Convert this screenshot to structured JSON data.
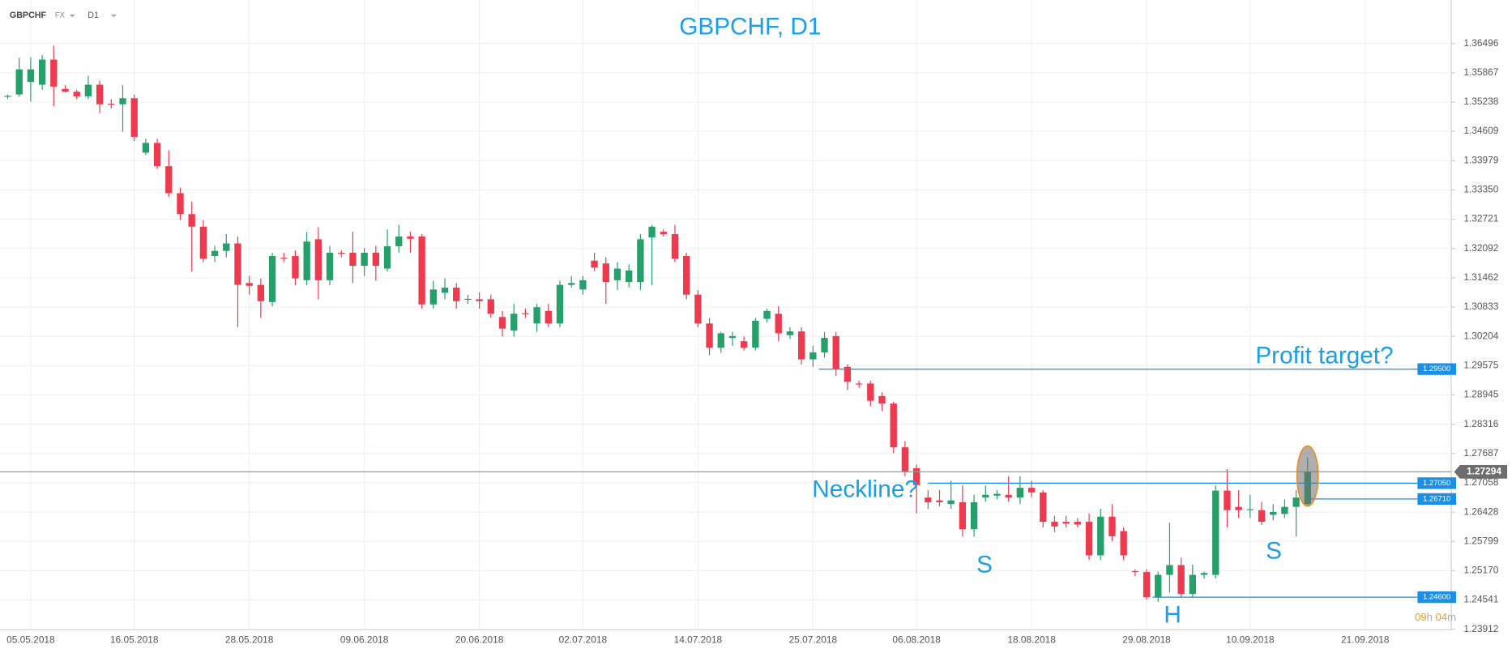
{
  "header": {
    "symbol": "GBPCHF",
    "market": "FX",
    "timeframe": "D1"
  },
  "chart_data": {
    "type": "candlestick",
    "title": "GBPCHF, D1",
    "up_color": "#26a06b",
    "down_color": "#ee3a4f",
    "grid": true,
    "ylim": [
      1.239,
      1.3743
    ],
    "yticks": [
      1.36496,
      1.35867,
      1.35238,
      1.34609,
      1.33979,
      {
        "value": 1.3335,
        "label": "1.33350"
      },
      1.32721,
      1.32092,
      1.31462,
      1.30833,
      1.30204,
      1.29575,
      1.28945,
      1.28316,
      1.27687,
      1.27058,
      1.26428,
      1.25799,
      {
        "value": 1.2517,
        "label": "1.25170"
      },
      1.24541,
      1.23912
    ],
    "categories": [
      null,
      null,
      "05.05.2018",
      null,
      null,
      null,
      null,
      null,
      null,
      null,
      null,
      "16.05.2018",
      null,
      null,
      null,
      null,
      null,
      null,
      null,
      null,
      null,
      "28.05.2018",
      null,
      null,
      null,
      null,
      null,
      null,
      null,
      null,
      null,
      "09.06.2018",
      null,
      null,
      null,
      null,
      null,
      null,
      null,
      null,
      null,
      "20.06.2018",
      null,
      null,
      null,
      null,
      null,
      null,
      null,
      null,
      "02.07.2018",
      null,
      null,
      null,
      null,
      null,
      null,
      null,
      null,
      null,
      "14.07.2018",
      null,
      null,
      null,
      null,
      null,
      null,
      null,
      null,
      null,
      "25.07.2018",
      null,
      null,
      null,
      null,
      null,
      null,
      null,
      null,
      "06.08.2018",
      null,
      null,
      null,
      null,
      null,
      null,
      null,
      null,
      null,
      "18.08.2018",
      null,
      null,
      null,
      null,
      null,
      null,
      null,
      null,
      null,
      "29.08.2018",
      null,
      null,
      null,
      null,
      null,
      null,
      null,
      null,
      "10.09.2018",
      null,
      null,
      null,
      null,
      null,
      null,
      null,
      null,
      null,
      "21.09.2018",
      null,
      null,
      null,
      null,
      null
    ],
    "candles": [
      [
        1.3535,
        1.354,
        1.353,
        1.3537
      ],
      [
        1.354,
        1.3619,
        1.3535,
        1.3594
      ],
      [
        1.3567,
        1.362,
        1.3525,
        1.3594
      ],
      [
        1.3561,
        1.3625,
        1.355,
        1.3615
      ],
      [
        1.3615,
        1.3645,
        1.3515,
        1.3557
      ],
      [
        1.3552,
        1.356,
        1.3545,
        1.3546
      ],
      [
        1.3546,
        1.355,
        1.353,
        1.3536
      ],
      [
        1.3536,
        1.358,
        1.353,
        1.3561
      ],
      [
        1.3561,
        1.357,
        1.35,
        1.3519
      ],
      [
        1.352,
        1.353,
        1.351,
        1.3519
      ],
      [
        1.3519,
        1.356,
        1.346,
        1.3532
      ],
      [
        1.3532,
        1.354,
        1.344,
        1.3449
      ],
      [
        1.3415,
        1.3445,
        1.341,
        1.3436
      ],
      [
        1.3436,
        1.3445,
        1.338,
        1.3386
      ],
      [
        1.3386,
        1.342,
        1.332,
        1.3328
      ],
      [
        1.3328,
        1.334,
        1.327,
        1.3283
      ],
      [
        1.3283,
        1.331,
        1.316,
        1.3256
      ],
      [
        1.3256,
        1.327,
        1.318,
        1.3187
      ],
      [
        1.3193,
        1.3215,
        1.318,
        1.3204
      ],
      [
        1.3204,
        1.324,
        1.319,
        1.322
      ],
      [
        1.322,
        1.3235,
        1.304,
        1.3131
      ],
      [
        1.3135,
        1.315,
        1.311,
        1.3129
      ],
      [
        1.3131,
        1.3145,
        1.306,
        1.3096
      ],
      [
        1.3094,
        1.32,
        1.3085,
        1.3193
      ],
      [
        1.3189,
        1.32,
        1.318,
        1.3187
      ],
      [
        1.3193,
        1.3205,
        1.313,
        1.3145
      ],
      [
        1.3141,
        1.3245,
        1.313,
        1.3224
      ],
      [
        1.3229,
        1.3255,
        1.31,
        1.3141
      ],
      [
        1.3141,
        1.3215,
        1.313,
        1.32
      ],
      [
        1.32,
        1.3205,
        1.319,
        1.3198
      ],
      [
        1.32,
        1.3245,
        1.3135,
        1.3172
      ],
      [
        1.3172,
        1.321,
        1.315,
        1.32
      ],
      [
        1.32,
        1.3215,
        1.314,
        1.3172
      ],
      [
        1.3166,
        1.325,
        1.316,
        1.3214
      ],
      [
        1.3214,
        1.326,
        1.32,
        1.3235
      ],
      [
        1.3235,
        1.3245,
        1.32,
        1.323
      ],
      [
        1.3235,
        1.324,
        1.308,
        1.3089
      ],
      [
        1.3089,
        1.314,
        1.308,
        1.3121
      ],
      [
        1.3114,
        1.3145,
        1.31,
        1.3125
      ],
      [
        1.3125,
        1.3135,
        1.308,
        1.3096
      ],
      [
        1.31,
        1.311,
        1.309,
        1.3101
      ],
      [
        1.31,
        1.3115,
        1.308,
        1.3096
      ],
      [
        1.31,
        1.311,
        1.306,
        1.3069
      ],
      [
        1.3062,
        1.3075,
        1.302,
        1.3037
      ],
      [
        1.3033,
        1.309,
        1.302,
        1.3069
      ],
      [
        1.307,
        1.308,
        1.306,
        1.3069
      ],
      [
        1.3048,
        1.309,
        1.303,
        1.3083
      ],
      [
        1.3075,
        1.309,
        1.304,
        1.3048
      ],
      [
        1.3048,
        1.314,
        1.304,
        1.3131
      ],
      [
        1.3131,
        1.315,
        1.3125,
        1.3135
      ],
      [
        1.3121,
        1.315,
        1.311,
        1.3141
      ],
      [
        1.3183,
        1.32,
        1.316,
        1.3168
      ],
      [
        1.3177,
        1.319,
        1.309,
        1.3137
      ],
      [
        1.3141,
        1.318,
        1.312,
        1.3166
      ],
      [
        1.3137,
        1.3175,
        1.3125,
        1.3162
      ],
      [
        1.3137,
        1.324,
        1.312,
        1.3229
      ],
      [
        1.3233,
        1.326,
        1.313,
        1.3256
      ],
      [
        1.3245,
        1.325,
        1.3235,
        1.324
      ],
      [
        1.324,
        1.326,
        1.318,
        1.3187
      ],
      [
        1.3193,
        1.32,
        1.31,
        1.311
      ],
      [
        1.311,
        1.312,
        1.304,
        1.3048
      ],
      [
        1.3048,
        1.306,
        1.298,
        1.2996
      ],
      [
        1.2996,
        1.303,
        1.2985,
        1.3027
      ],
      [
        1.3017,
        1.303,
        1.3,
        1.3021
      ],
      [
        1.301,
        1.302,
        1.299,
        1.2996
      ],
      [
        1.2996,
        1.306,
        1.299,
        1.3054
      ],
      [
        1.3058,
        1.308,
        1.305,
        1.3075
      ],
      [
        1.3069,
        1.3085,
        1.301,
        1.3027
      ],
      [
        1.3023,
        1.304,
        1.3015,
        1.3031
      ],
      [
        1.3031,
        1.304,
        1.296,
        1.2971
      ],
      [
        1.2971,
        1.3,
        1.2955,
        1.2986
      ],
      [
        1.2986,
        1.303,
        1.2975,
        1.3017
      ],
      [
        1.3021,
        1.303,
        1.2935,
        1.295
      ],
      [
        1.2955,
        1.296,
        1.2905,
        1.2923
      ],
      [
        1.2919,
        1.2925,
        1.291,
        1.2917
      ],
      [
        1.2919,
        1.2925,
        1.287,
        1.2882
      ],
      [
        1.2892,
        1.29,
        1.286,
        1.2876
      ],
      [
        1.2876,
        1.288,
        1.277,
        1.2782
      ],
      [
        1.2782,
        1.2795,
        1.272,
        1.273
      ],
      [
        1.2737,
        1.2745,
        1.264,
        1.2701
      ],
      [
        1.2674,
        1.269,
        1.265,
        1.2664
      ],
      [
        1.2668,
        1.269,
        1.2655,
        1.2664
      ],
      [
        1.266,
        1.271,
        1.265,
        1.2668
      ],
      [
        1.2664,
        1.27,
        1.259,
        1.2606
      ],
      [
        1.2606,
        1.268,
        1.259,
        1.2664
      ],
      [
        1.2674,
        1.27,
        1.2665,
        1.268
      ],
      [
        1.2678,
        1.269,
        1.267,
        1.2682
      ],
      [
        1.268,
        1.272,
        1.2665,
        1.2674
      ],
      [
        1.2674,
        1.272,
        1.266,
        1.2695
      ],
      [
        1.2695,
        1.271,
        1.2675,
        1.2685
      ],
      [
        1.2685,
        1.269,
        1.261,
        1.2622
      ],
      [
        1.2622,
        1.2635,
        1.26,
        1.2612
      ],
      [
        1.2622,
        1.2635,
        1.261,
        1.2618
      ],
      [
        1.2622,
        1.263,
        1.261,
        1.2616
      ],
      [
        1.2622,
        1.264,
        1.254,
        1.255
      ],
      [
        1.255,
        1.265,
        1.254,
        1.2633
      ],
      [
        1.2633,
        1.266,
        1.258,
        1.2591
      ],
      [
        1.2602,
        1.261,
        1.254,
        1.255
      ],
      [
        1.2516,
        1.252,
        1.2505,
        1.2514
      ],
      [
        1.2514,
        1.252,
        1.2455,
        1.246
      ],
      [
        1.246,
        1.2515,
        1.245,
        1.2508
      ],
      [
        1.2508,
        1.262,
        1.247,
        1.2529
      ],
      [
        1.2529,
        1.2545,
        1.246,
        1.2467
      ],
      [
        1.2467,
        1.253,
        1.246,
        1.2508
      ],
      [
        1.2508,
        1.2515,
        1.25,
        1.2512
      ],
      [
        1.2508,
        1.27,
        1.25,
        1.2689
      ],
      [
        1.2689,
        1.2735,
        1.261,
        1.2647
      ],
      [
        1.2654,
        1.269,
        1.263,
        1.2647
      ],
      [
        1.2647,
        1.268,
        1.263,
        1.2649
      ],
      [
        1.2647,
        1.2665,
        1.2615,
        1.2622
      ],
      [
        1.2637,
        1.266,
        1.2625,
        1.2643
      ],
      [
        1.2639,
        1.267,
        1.263,
        1.2654
      ],
      [
        1.2654,
        1.269,
        1.259,
        1.2674
      ],
      [
        1.266,
        1.276,
        1.2655,
        1.2729
      ],
      null,
      null,
      null,
      null,
      null,
      null,
      null,
      null,
      null,
      null
    ],
    "last_price": 1.27294,
    "levels": [
      {
        "value": 1.295,
        "label": "1.29500"
      },
      {
        "value": 1.2705,
        "label": "1.27050"
      },
      {
        "value": 1.2671,
        "label": "1.26710"
      },
      {
        "value": 1.246,
        "label": "1.24600"
      }
    ],
    "level_color": "#1a8fe3",
    "annotations": [
      "Profit target?",
      "Neckline?",
      "S",
      "H",
      "S"
    ],
    "timer": {
      "hours": "09",
      "hours_unit": "h",
      "minutes": "04",
      "minutes_unit": "m"
    }
  }
}
